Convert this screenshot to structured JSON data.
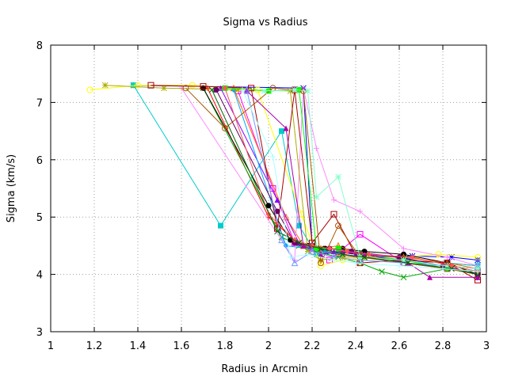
{
  "chart_data": {
    "type": "line",
    "title": "Sigma vs Radius",
    "xlabel": "Radius in Arcmin",
    "ylabel": "Sigma (km/s)",
    "xlim": [
      1,
      3
    ],
    "ylim": [
      3,
      8
    ],
    "xticks": [
      1,
      1.2,
      1.4,
      1.6,
      1.8,
      2,
      2.2,
      2.4,
      2.6,
      2.8,
      3
    ],
    "yticks": [
      3,
      4,
      5,
      6,
      7,
      8
    ],
    "xtick_labels": [
      "1",
      "1.2",
      "1.4",
      "1.6",
      "1.8",
      "2",
      "2.2",
      "2.4",
      "2.6",
      "2.8",
      "3"
    ],
    "ytick_labels": [
      "3",
      "4",
      "5",
      "6",
      "7",
      "8"
    ],
    "grid": true,
    "series": [
      {
        "color": "#ff0000",
        "marker": "plus",
        "x": [
          1.72,
          2.0,
          2.12,
          2.18,
          2.24,
          2.32,
          2.42,
          2.62,
          2.82,
          2.96
        ],
        "y": [
          7.25,
          5.0,
          4.6,
          4.45,
          4.4,
          4.35,
          4.3,
          4.25,
          4.2,
          4.15
        ]
      },
      {
        "color": "#00aa00",
        "marker": "x",
        "x": [
          1.7,
          2.06,
          2.14,
          2.22,
          2.32,
          2.42,
          2.52,
          2.62,
          2.82,
          2.96
        ],
        "y": [
          7.25,
          4.65,
          4.5,
          4.4,
          4.3,
          4.2,
          4.05,
          3.95,
          4.1,
          4.0
        ]
      },
      {
        "color": "#0000ff",
        "marker": "star",
        "x": [
          1.38,
          2.16,
          2.2,
          2.26,
          2.34,
          2.44,
          2.66,
          2.84,
          2.96
        ],
        "y": [
          7.3,
          7.25,
          4.5,
          4.4,
          4.35,
          4.3,
          4.32,
          4.3,
          4.25
        ]
      },
      {
        "color": "#ff00ff",
        "marker": "box",
        "x": [
          1.86,
          2.02,
          2.12,
          2.2,
          2.28,
          2.42,
          2.62,
          2.82,
          2.96
        ],
        "y": [
          7.2,
          5.5,
          4.55,
          4.4,
          4.25,
          4.7,
          4.2,
          4.1,
          4.05
        ]
      },
      {
        "color": "#00cccc",
        "marker": "filled-box",
        "x": [
          1.38,
          1.78,
          2.06,
          2.14,
          2.22,
          2.32,
          2.42,
          2.62,
          2.82,
          2.96
        ],
        "y": [
          7.3,
          4.85,
          6.5,
          4.85,
          4.35,
          4.4,
          4.35,
          4.3,
          4.2,
          4.15
        ]
      },
      {
        "color": "#ffff00",
        "marker": "circle",
        "x": [
          1.18,
          1.4,
          1.65,
          1.95,
          2.15,
          2.24,
          2.34,
          2.44,
          2.62,
          2.78,
          2.96
        ],
        "y": [
          7.22,
          7.3,
          7.3,
          7.22,
          5.05,
          4.15,
          4.25,
          4.3,
          4.3,
          4.35,
          4.3
        ]
      },
      {
        "color": "#000000",
        "marker": "filled-circle",
        "x": [
          1.7,
          2.0,
          2.1,
          2.18,
          2.26,
          2.34,
          2.44,
          2.62,
          2.82,
          2.96
        ],
        "y": [
          7.25,
          5.2,
          4.6,
          4.5,
          4.45,
          4.45,
          4.4,
          4.35,
          4.2,
          4.0
        ]
      },
      {
        "color": "#ff6600",
        "marker": "triangle",
        "x": [
          1.84,
          2.08,
          2.16,
          2.24,
          2.32,
          2.42,
          2.62,
          2.82,
          2.96
        ],
        "y": [
          7.25,
          5.0,
          4.5,
          4.45,
          4.5,
          4.35,
          4.3,
          4.2,
          4.1
        ]
      },
      {
        "color": "#8800ff",
        "marker": "filled-triangle",
        "x": [
          1.78,
          2.04,
          2.14,
          2.22,
          2.3,
          2.4,
          2.6,
          2.8,
          2.96
        ],
        "y": [
          7.25,
          5.3,
          4.55,
          4.45,
          4.4,
          4.35,
          4.3,
          4.15,
          4.1
        ]
      },
      {
        "color": "#00aaff",
        "marker": "diamond",
        "x": [
          1.84,
          2.08,
          2.18,
          2.26,
          2.34,
          2.44,
          2.64,
          2.82,
          2.96
        ],
        "y": [
          7.22,
          4.5,
          4.45,
          4.4,
          4.35,
          4.3,
          4.25,
          4.1,
          4.05
        ]
      },
      {
        "color": "#ff88ff",
        "marker": "plus",
        "x": [
          1.6,
          2.12,
          2.16,
          2.22,
          2.3,
          2.42,
          2.62,
          2.82,
          2.96
        ],
        "y": [
          7.25,
          4.25,
          7.25,
          6.2,
          5.3,
          5.1,
          4.45,
          4.3,
          4.15
        ]
      },
      {
        "color": "#aaaa00",
        "marker": "star",
        "x": [
          1.25,
          1.52,
          1.86,
          2.1,
          2.18,
          2.24,
          2.34,
          2.44,
          2.62,
          2.82,
          2.96
        ],
        "y": [
          7.3,
          7.25,
          7.22,
          7.2,
          4.4,
          4.25,
          4.3,
          4.3,
          4.25,
          4.1,
          4.05
        ]
      },
      {
        "color": "#aa0000",
        "marker": "box",
        "x": [
          1.46,
          1.7,
          1.92,
          2.04,
          2.12,
          2.2,
          2.3,
          2.42,
          2.62,
          2.82,
          2.96
        ],
        "y": [
          7.3,
          7.28,
          7.25,
          4.8,
          7.22,
          4.55,
          5.05,
          4.2,
          4.25,
          4.2,
          3.9
        ]
      },
      {
        "color": "#00ff00",
        "marker": "filled-box",
        "x": [
          1.8,
          2.0,
          2.14,
          2.22,
          2.32,
          2.42,
          2.62,
          2.82,
          2.96
        ],
        "y": [
          7.25,
          7.2,
          7.22,
          4.45,
          4.45,
          4.35,
          4.25,
          4.1,
          4.05
        ]
      },
      {
        "color": "#aa5500",
        "marker": "circle",
        "x": [
          1.62,
          1.8,
          2.02,
          2.16,
          2.24,
          2.32,
          2.42,
          2.62,
          2.82,
          2.96
        ],
        "y": [
          7.25,
          6.55,
          7.25,
          7.2,
          4.2,
          4.85,
          4.3,
          4.2,
          4.1,
          4.0
        ]
      },
      {
        "color": "#660066",
        "marker": "filled-circle",
        "x": [
          1.76,
          2.04,
          2.12,
          2.2,
          2.28,
          2.38,
          2.6,
          2.8,
          2.96
        ],
        "y": [
          7.22,
          5.1,
          4.55,
          4.5,
          4.45,
          4.4,
          4.3,
          4.15,
          4.0
        ]
      },
      {
        "color": "#aa00aa",
        "marker": "filled-triangle",
        "x": [
          1.9,
          2.08,
          2.16,
          2.24,
          2.34,
          2.44,
          2.64,
          2.74,
          2.96
        ],
        "y": [
          7.2,
          6.55,
          4.5,
          4.35,
          4.4,
          4.35,
          4.2,
          3.95,
          3.95
        ]
      },
      {
        "color": "#7799ff",
        "marker": "triangle",
        "x": [
          1.9,
          2.06,
          2.12,
          2.2,
          2.3,
          2.42,
          2.62,
          2.82,
          2.96
        ],
        "y": [
          7.22,
          4.6,
          4.2,
          4.4,
          4.3,
          4.25,
          4.2,
          4.15,
          4.1
        ]
      },
      {
        "color": "#88ffcc",
        "marker": "star",
        "x": [
          1.98,
          2.12,
          2.18,
          2.22,
          2.32,
          2.42,
          2.62,
          2.82,
          2.96
        ],
        "y": [
          7.2,
          7.22,
          7.2,
          5.35,
          5.7,
          4.3,
          4.25,
          4.15,
          4.1
        ]
      },
      {
        "color": "#ff5555",
        "marker": "diamond",
        "x": [
          1.8,
          2.0,
          2.12,
          2.2,
          2.28,
          2.36,
          2.46,
          2.66,
          2.84,
          2.96
        ],
        "y": [
          7.25,
          5.05,
          4.6,
          4.5,
          4.45,
          4.4,
          4.35,
          4.3,
          4.15,
          4.05
        ]
      },
      {
        "color": "#006600",
        "marker": "x",
        "x": [
          1.74,
          2.04,
          2.14,
          2.24,
          2.34,
          2.44,
          2.64,
          2.84,
          2.96
        ],
        "y": [
          7.22,
          4.75,
          4.55,
          4.45,
          4.35,
          4.3,
          4.2,
          4.1,
          4.0
        ]
      },
      {
        "color": "#aaffff",
        "marker": "plus",
        "x": [
          1.88,
          2.02,
          2.1,
          2.18,
          2.3,
          2.4,
          2.6,
          2.8,
          2.96
        ],
        "y": [
          7.22,
          6.05,
          4.3,
          4.35,
          4.25,
          4.2,
          4.15,
          4.1,
          4.05
        ]
      }
    ]
  }
}
